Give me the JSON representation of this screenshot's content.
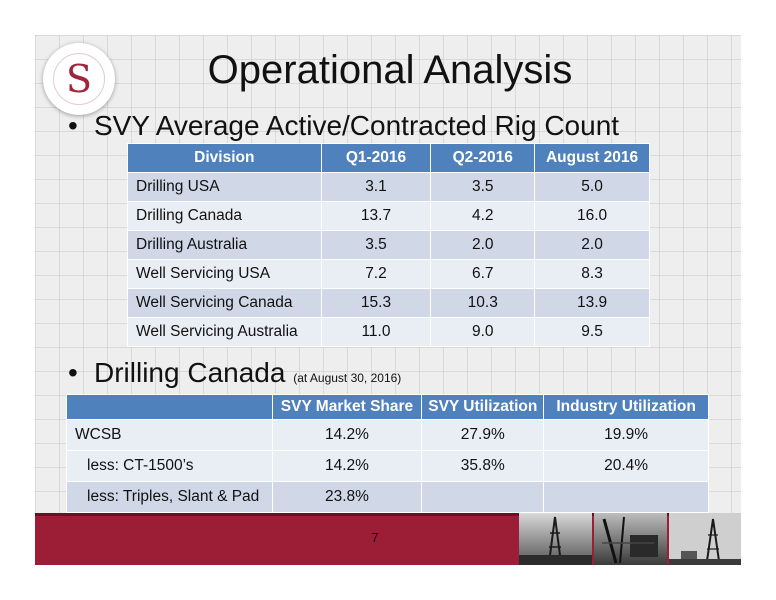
{
  "slide": {
    "title": "Operational Analysis",
    "logo_letter": "S",
    "page_number": "7"
  },
  "bullet1": {
    "marker": "•",
    "text": "SVY Average Active/Contracted Rig Count"
  },
  "rig_table": {
    "headers": [
      "Division",
      "Q1-2016",
      "Q2-2016",
      "August 2016"
    ],
    "rows": [
      [
        "Drilling USA",
        "3.1",
        "3.5",
        "5.0"
      ],
      [
        "Drilling Canada",
        "13.7",
        "4.2",
        "16.0"
      ],
      [
        "Drilling Australia",
        "3.5",
        "2.0",
        "2.0"
      ],
      [
        "Well Servicing USA",
        "7.2",
        "6.7",
        "8.3"
      ],
      [
        "Well Servicing Canada",
        "15.3",
        "10.3",
        "13.9"
      ],
      [
        "Well Servicing Australia",
        "11.0",
        "9.0",
        "9.5"
      ]
    ]
  },
  "bullet2": {
    "marker": "•",
    "text": "Drilling Canada",
    "note": "(at August 30, 2016)"
  },
  "canada_table": {
    "headers": [
      "",
      "SVY Market Share",
      "SVY Utilization",
      "Industry Utilization"
    ],
    "rows": [
      [
        "WCSB",
        "14.2%",
        "27.9%",
        "19.9%"
      ],
      [
        "less: CT-1500’s",
        "14.2%",
        "35.8%",
        "20.4%"
      ],
      [
        "less: Triples, Slant & Pad",
        "23.8%",
        "",
        ""
      ]
    ]
  },
  "colors": {
    "header_blue": "#4f81bd",
    "row_dark": "#d0d8e8",
    "row_light": "#e9edf4",
    "footer_red": "#9b1d36",
    "logo_red": "#a0243c"
  },
  "icons": [
    "logo-emblem",
    "drilling-rig-photo"
  ]
}
